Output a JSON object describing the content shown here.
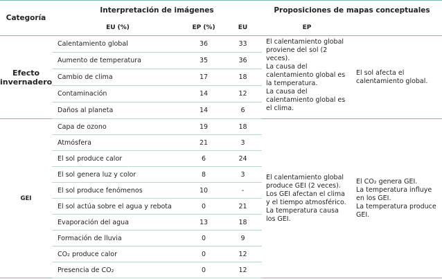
{
  "header": {
    "category": "Categoría",
    "images": "Interpretación de imágenes",
    "concepts": "Proposiciones de mapas conceptuales",
    "images_eu": "EU (%)",
    "images_ep": "EP (%)",
    "concepts_eu": "EU",
    "concepts_ep": "EP"
  },
  "groups": [
    {
      "category": "Efecto invernadero",
      "rows": [
        [
          "Calentamiento global",
          "36",
          "33"
        ],
        [
          "Aumento de temperatura",
          "35",
          "36"
        ],
        [
          "Cambio de clima",
          "17",
          "18"
        ],
        [
          "Contaminación",
          "14",
          "12"
        ],
        [
          "Daños al planeta",
          "14",
          "6"
        ]
      ],
      "eu_statements": [
        "El calentamiento global proviene del sol (2 veces).",
        "La causa del calentamiento global es la temperatura.",
        "La causa del calentamiento global es el clima."
      ],
      "ep_statements": [
        "El sol afecta el calentamiento global."
      ]
    },
    {
      "category": "GEI",
      "rows": [
        [
          "Capa de ozono",
          "19",
          "18"
        ],
        [
          "Atmósfera",
          "21",
          "3"
        ],
        [
          "El sol produce calor",
          "6",
          "24"
        ],
        [
          "El sol genera luz y color",
          "8",
          "3"
        ],
        [
          "El sol produce fenómenos",
          "10",
          "-"
        ],
        [
          "El sol actúa sobre el agua y rebota",
          "0",
          "21"
        ],
        [
          "Evaporación del agua",
          "13",
          "18"
        ],
        [
          "Formación de lluvia",
          "0",
          "9"
        ],
        [
          "CO₂ produce calor",
          "0",
          "12"
        ],
        [
          "Presencia de CO₂",
          "0",
          "12"
        ]
      ],
      "eu_statements": [
        "El calentamiento global produce GEI (2 veces).",
        "Los GEI afectan el clima y el tiempo atmosférico.",
        "La temperatura causa los GEI."
      ],
      "ep_statements": [
        "El CO₂ genera GEI.",
        "La temperatura influye en los GEI.",
        "La temperatura produce GEI."
      ]
    }
  ]
}
